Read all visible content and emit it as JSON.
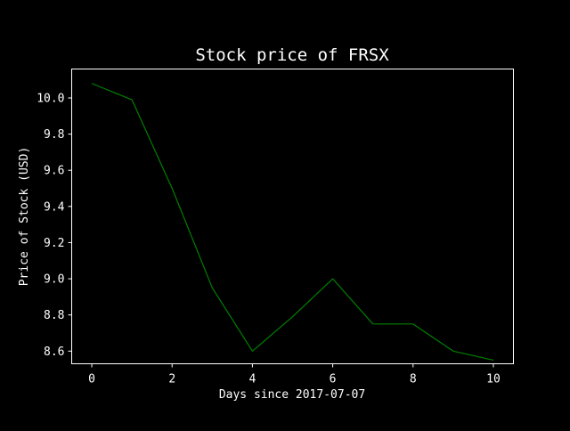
{
  "chart_data": {
    "type": "line",
    "title": "Stock price of FRSX",
    "xlabel": "Days since 2017-07-07",
    "ylabel": "Price of Stock (USD)",
    "x": [
      0,
      1,
      2,
      3,
      4,
      5,
      6,
      7,
      8,
      9,
      10
    ],
    "series": [
      {
        "values": [
          10.08,
          9.99,
          9.5,
          8.95,
          8.6,
          8.79,
          9.0,
          8.75,
          8.75,
          8.6,
          8.55
        ]
      }
    ],
    "xlim": [
      -0.5,
      10.5
    ],
    "ylim": [
      8.53,
      10.16
    ],
    "xticks": [
      0,
      2,
      4,
      6,
      8,
      10
    ],
    "yticks": [
      8.6,
      8.8,
      9.0,
      9.2,
      9.4,
      9.6,
      9.8,
      10.0
    ],
    "xtick_labels": [
      "0",
      "2",
      "4",
      "6",
      "8",
      "10"
    ],
    "ytick_labels": [
      "8.6",
      "8.8",
      "9.0",
      "9.2",
      "9.4",
      "9.6",
      "9.8",
      "10.0"
    ],
    "grid": false,
    "colors": {
      "background": "#000000",
      "axes": "#ffffff",
      "line": "#008000",
      "text": "#ffffff"
    }
  }
}
